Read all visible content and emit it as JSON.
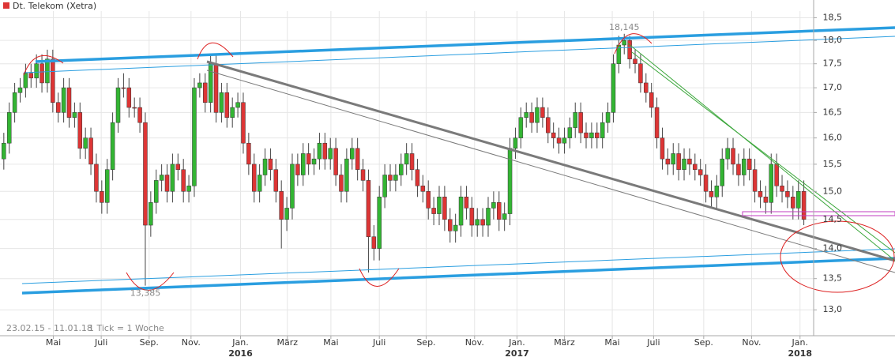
{
  "chart_data": {
    "type": "candlestick",
    "series": [
      {
        "name": "Dt. Telekom (Xetra)",
        "up_color": "#33b533",
        "down_color": "#dd3535",
        "values": [
          [
            15.6,
            16.1,
            15.4,
            15.9
          ],
          [
            15.9,
            16.7,
            15.7,
            16.5
          ],
          [
            16.5,
            17.1,
            16.3,
            16.9
          ],
          [
            16.9,
            17.2,
            16.7,
            17.0
          ],
          [
            17.0,
            17.5,
            16.8,
            17.3
          ],
          [
            17.3,
            17.5,
            17.0,
            17.2
          ],
          [
            17.2,
            17.7,
            17.0,
            17.5
          ],
          [
            17.5,
            17.7,
            16.9,
            17.1
          ],
          [
            17.1,
            17.8,
            16.9,
            17.6
          ],
          [
            17.6,
            17.8,
            16.5,
            16.7
          ],
          [
            16.7,
            16.9,
            16.3,
            16.5
          ],
          [
            16.5,
            17.2,
            16.3,
            17.0
          ],
          [
            17.0,
            17.2,
            16.2,
            16.4
          ],
          [
            16.4,
            16.7,
            16.2,
            16.5
          ],
          [
            16.5,
            16.7,
            15.6,
            15.8
          ],
          [
            15.8,
            16.2,
            15.6,
            16.0
          ],
          [
            16.0,
            16.2,
            15.3,
            15.5
          ],
          [
            15.5,
            15.7,
            14.8,
            15.0
          ],
          [
            15.0,
            15.2,
            14.6,
            14.8
          ],
          [
            14.8,
            15.6,
            14.6,
            15.4
          ],
          [
            15.4,
            16.5,
            15.2,
            16.3
          ],
          [
            16.3,
            17.2,
            16.1,
            17.0
          ],
          [
            17.0,
            17.3,
            16.8,
            17.0
          ],
          [
            17.0,
            17.2,
            16.4,
            16.6
          ],
          [
            16.6,
            16.8,
            16.4,
            16.6
          ],
          [
            16.6,
            16.8,
            16.1,
            16.3
          ],
          [
            16.3,
            16.5,
            13.385,
            14.4
          ],
          [
            14.4,
            15.0,
            14.2,
            14.8
          ],
          [
            14.8,
            15.4,
            14.6,
            15.2
          ],
          [
            15.2,
            15.5,
            15.0,
            15.3
          ],
          [
            15.3,
            15.5,
            14.8,
            15.0
          ],
          [
            15.0,
            15.7,
            14.8,
            15.5
          ],
          [
            15.5,
            15.7,
            15.2,
            15.4
          ],
          [
            15.4,
            15.6,
            14.8,
            15.0
          ],
          [
            15.0,
            15.3,
            14.8,
            15.1
          ],
          [
            15.1,
            17.2,
            14.9,
            17.0
          ],
          [
            17.0,
            17.3,
            16.8,
            17.1
          ],
          [
            17.1,
            17.3,
            16.5,
            16.7
          ],
          [
            16.7,
            17.7,
            16.5,
            17.5
          ],
          [
            17.5,
            17.7,
            16.3,
            16.5
          ],
          [
            16.5,
            17.1,
            16.3,
            16.9
          ],
          [
            16.9,
            17.1,
            16.2,
            16.4
          ],
          [
            16.4,
            16.8,
            16.2,
            16.6
          ],
          [
            16.6,
            16.9,
            16.4,
            16.7
          ],
          [
            16.7,
            16.9,
            15.7,
            15.9
          ],
          [
            15.9,
            16.1,
            15.3,
            15.5
          ],
          [
            15.5,
            15.7,
            14.8,
            15.0
          ],
          [
            15.0,
            15.5,
            14.8,
            15.3
          ],
          [
            15.3,
            15.8,
            15.1,
            15.6
          ],
          [
            15.6,
            15.8,
            15.2,
            15.4
          ],
          [
            15.4,
            15.6,
            14.8,
            15.0
          ],
          [
            15.0,
            15.2,
            14.0,
            14.5
          ],
          [
            14.5,
            14.9,
            14.3,
            14.7
          ],
          [
            14.7,
            15.7,
            14.5,
            15.5
          ],
          [
            15.5,
            15.7,
            15.1,
            15.3
          ],
          [
            15.3,
            15.9,
            15.1,
            15.7
          ],
          [
            15.7,
            15.9,
            15.3,
            15.5
          ],
          [
            15.5,
            15.8,
            15.3,
            15.6
          ],
          [
            15.6,
            16.1,
            15.4,
            15.9
          ],
          [
            15.9,
            16.1,
            15.4,
            15.6
          ],
          [
            15.6,
            16.0,
            15.4,
            15.8
          ],
          [
            15.8,
            16.0,
            15.1,
            15.3
          ],
          [
            15.3,
            15.5,
            14.8,
            15.0
          ],
          [
            15.0,
            15.8,
            14.8,
            15.6
          ],
          [
            15.6,
            16.0,
            15.4,
            15.8
          ],
          [
            15.8,
            16.0,
            15.2,
            15.4
          ],
          [
            15.4,
            15.6,
            15.0,
            15.2
          ],
          [
            15.2,
            15.4,
            13.6,
            14.2
          ],
          [
            14.2,
            14.4,
            13.8,
            14.0
          ],
          [
            14.0,
            15.1,
            13.8,
            14.9
          ],
          [
            14.9,
            15.5,
            14.7,
            15.3
          ],
          [
            15.3,
            15.5,
            15.0,
            15.2
          ],
          [
            15.2,
            15.5,
            15.0,
            15.3
          ],
          [
            15.3,
            15.7,
            15.1,
            15.5
          ],
          [
            15.5,
            15.9,
            15.3,
            15.7
          ],
          [
            15.7,
            15.9,
            15.2,
            15.4
          ],
          [
            15.4,
            15.6,
            14.9,
            15.1
          ],
          [
            15.1,
            15.3,
            14.8,
            15.0
          ],
          [
            15.0,
            15.2,
            14.5,
            14.7
          ],
          [
            14.7,
            14.9,
            14.4,
            14.6
          ],
          [
            14.6,
            15.1,
            14.4,
            14.9
          ],
          [
            14.9,
            15.1,
            14.3,
            14.5
          ],
          [
            14.5,
            14.7,
            14.1,
            14.3
          ],
          [
            14.3,
            14.6,
            14.1,
            14.4
          ],
          [
            14.4,
            15.1,
            14.2,
            14.9
          ],
          [
            14.9,
            15.1,
            14.5,
            14.7
          ],
          [
            14.7,
            14.9,
            14.2,
            14.4
          ],
          [
            14.4,
            14.7,
            14.2,
            14.5
          ],
          [
            14.5,
            14.7,
            14.2,
            14.4
          ],
          [
            14.4,
            14.9,
            14.2,
            14.7
          ],
          [
            14.7,
            15.0,
            14.5,
            14.8
          ],
          [
            14.8,
            15.0,
            14.3,
            14.5
          ],
          [
            14.5,
            14.8,
            14.3,
            14.6
          ],
          [
            14.6,
            16.0,
            14.4,
            15.8
          ],
          [
            15.8,
            16.2,
            15.6,
            16.0
          ],
          [
            16.0,
            16.6,
            15.8,
            16.4
          ],
          [
            16.4,
            16.7,
            16.2,
            16.5
          ],
          [
            16.5,
            16.7,
            16.1,
            16.3
          ],
          [
            16.3,
            16.8,
            16.1,
            16.6
          ],
          [
            16.6,
            16.8,
            16.2,
            16.4
          ],
          [
            16.4,
            16.6,
            15.9,
            16.1
          ],
          [
            16.1,
            16.3,
            15.8,
            16.0
          ],
          [
            16.0,
            16.2,
            15.7,
            15.9
          ],
          [
            15.9,
            16.2,
            15.7,
            16.0
          ],
          [
            16.0,
            16.4,
            15.8,
            16.2
          ],
          [
            16.2,
            16.7,
            16.0,
            16.5
          ],
          [
            16.5,
            16.7,
            15.9,
            16.1
          ],
          [
            16.1,
            16.3,
            15.8,
            16.0
          ],
          [
            16.0,
            16.3,
            15.8,
            16.1
          ],
          [
            16.1,
            16.3,
            15.8,
            16.0
          ],
          [
            16.0,
            16.5,
            15.8,
            16.3
          ],
          [
            16.3,
            16.7,
            16.1,
            16.5
          ],
          [
            16.5,
            17.7,
            16.3,
            17.5
          ],
          [
            17.5,
            18.1,
            17.3,
            17.9
          ],
          [
            17.9,
            18.145,
            17.7,
            18.0
          ],
          [
            18.0,
            18.1,
            17.4,
            17.6
          ],
          [
            17.6,
            17.8,
            17.3,
            17.5
          ],
          [
            17.5,
            17.7,
            16.9,
            17.1
          ],
          [
            17.1,
            17.3,
            16.7,
            16.9
          ],
          [
            16.9,
            17.1,
            16.4,
            16.6
          ],
          [
            16.6,
            16.8,
            15.8,
            16.0
          ],
          [
            16.0,
            16.2,
            15.4,
            15.6
          ],
          [
            15.6,
            15.8,
            15.3,
            15.5
          ],
          [
            15.5,
            15.9,
            15.3,
            15.7
          ],
          [
            15.7,
            15.9,
            15.2,
            15.4
          ],
          [
            15.4,
            15.8,
            15.2,
            15.6
          ],
          [
            15.6,
            15.8,
            15.3,
            15.5
          ],
          [
            15.5,
            15.7,
            15.2,
            15.4
          ],
          [
            15.4,
            15.6,
            15.1,
            15.3
          ],
          [
            15.3,
            15.5,
            14.8,
            15.0
          ],
          [
            15.0,
            15.2,
            14.7,
            14.9
          ],
          [
            14.9,
            15.3,
            14.7,
            15.1
          ],
          [
            15.1,
            15.8,
            14.9,
            15.6
          ],
          [
            15.6,
            16.0,
            15.4,
            15.8
          ],
          [
            15.8,
            16.0,
            15.3,
            15.5
          ],
          [
            15.5,
            15.7,
            15.1,
            15.3
          ],
          [
            15.3,
            15.8,
            15.1,
            15.6
          ],
          [
            15.6,
            15.8,
            15.2,
            15.4
          ],
          [
            15.4,
            15.6,
            14.8,
            15.0
          ],
          [
            15.0,
            15.2,
            14.7,
            14.9
          ],
          [
            14.9,
            15.1,
            14.6,
            14.8
          ],
          [
            14.8,
            15.7,
            14.6,
            15.5
          ],
          [
            15.5,
            15.7,
            14.9,
            15.1
          ],
          [
            15.1,
            15.3,
            14.8,
            15.0
          ],
          [
            15.0,
            15.2,
            14.7,
            14.9
          ],
          [
            14.9,
            15.1,
            14.5,
            14.7
          ],
          [
            14.7,
            15.2,
            14.5,
            15.0
          ],
          [
            15.0,
            15.2,
            14.4,
            14.5
          ]
        ]
      }
    ],
    "log_scale": true,
    "grid": true,
    "ylim": [
      12.6,
      18.65
    ],
    "yticks": [
      {
        "value": 13.0,
        "label": "13,0"
      },
      {
        "value": 13.5,
        "label": "13,5"
      },
      {
        "value": 14.0,
        "label": "14,0"
      },
      {
        "value": 14.5,
        "label": "14,5"
      },
      {
        "value": 15.0,
        "label": "15,0"
      },
      {
        "value": 15.5,
        "label": "15,5"
      },
      {
        "value": 16.0,
        "label": "16,0"
      },
      {
        "value": 16.5,
        "label": "16,5"
      },
      {
        "value": 17.0,
        "label": "17,0"
      },
      {
        "value": 17.5,
        "label": "17,5"
      },
      {
        "value": 18.0,
        "label": "18,0"
      },
      {
        "value": 18.5,
        "label": "18,5"
      }
    ],
    "xlim": [
      -0.7,
      148.8
    ],
    "xticks": [
      {
        "value": 9.1,
        "label": "Mai"
      },
      {
        "value": 17.9,
        "label": "Juli"
      },
      {
        "value": 26.7,
        "label": "Sep."
      },
      {
        "value": 34.4,
        "label": "Nov."
      },
      {
        "value": 43.5,
        "label": "Jan.",
        "year": "2016"
      },
      {
        "value": 52.1,
        "label": "März"
      },
      {
        "value": 60.1,
        "label": "Mai"
      },
      {
        "value": 69,
        "label": "Juli"
      },
      {
        "value": 77.6,
        "label": "Sep."
      },
      {
        "value": 86.5,
        "label": "Nov."
      },
      {
        "value": 94.3,
        "label": "Jan.",
        "year": "2017"
      },
      {
        "value": 103,
        "label": "März"
      },
      {
        "value": 111.8,
        "label": "Mai"
      },
      {
        "value": 119.4,
        "label": "Juli"
      },
      {
        "value": 128.6,
        "label": "Sep."
      },
      {
        "value": 137.4,
        "label": "Nov."
      },
      {
        "value": 146.3,
        "label": "Jan.",
        "year": "2018"
      }
    ],
    "annotations": [
      {
        "index": 114,
        "value": 18.145,
        "label": "18,145",
        "position": "above"
      },
      {
        "index": 26,
        "value": 13.385,
        "label": "13,385",
        "position": "below"
      }
    ],
    "footer": [
      "23.02.15 - 11.01.18",
      "1 Tick = 1 Woche"
    ]
  }
}
